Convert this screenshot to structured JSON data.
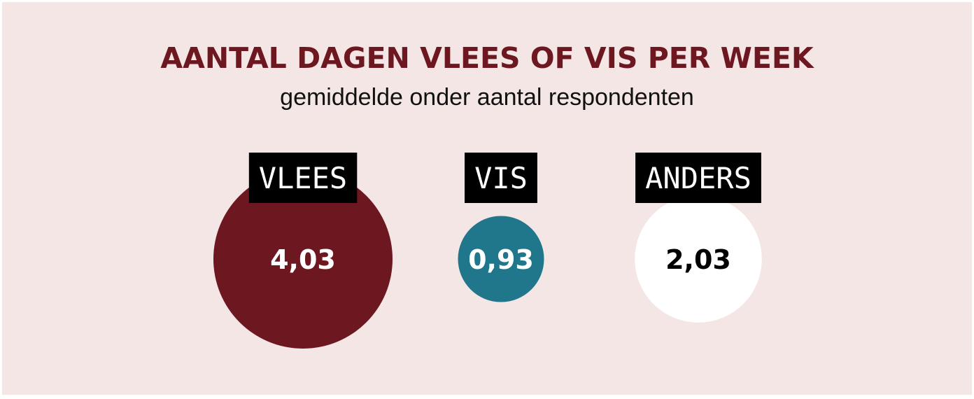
{
  "title": "AANTAL DAGEN VLEES OF VIS PER WEEK",
  "subtitle": "gemiddelde onder aantal respondenten",
  "colors": {
    "background": "#f3e6e5",
    "title": "#6d1720",
    "label_box": "#000000"
  },
  "chart_data": {
    "type": "bubble",
    "title": "AANTAL DAGEN VLEES OF VIS PER WEEK",
    "subtitle": "gemiddelde onder aantal respondenten",
    "categories": [
      "VLEES",
      "VIS",
      "ANDERS"
    ],
    "values": [
      4.03,
      0.93,
      2.03
    ],
    "value_labels": [
      "4,03",
      "0,93",
      "2,03"
    ],
    "colors": [
      "#6d1720",
      "#20768a",
      "#ffffff"
    ],
    "value_label_colors": [
      "#ffffff",
      "#ffffff",
      "#000000"
    ]
  }
}
